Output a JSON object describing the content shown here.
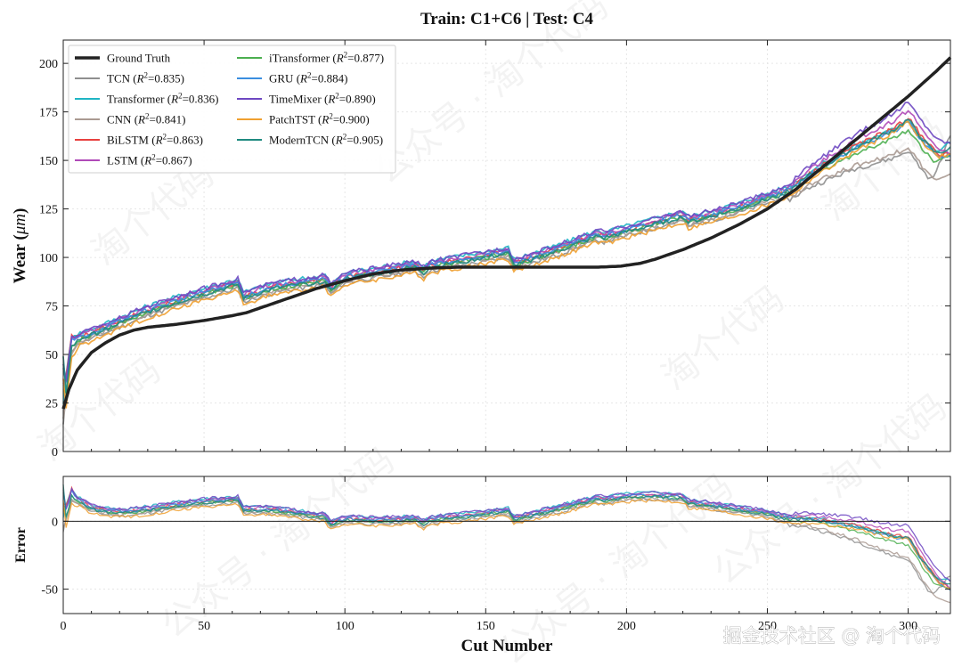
{
  "chart_data": [
    {
      "type": "line",
      "title": "Train: C1+C6  |  Test: C4",
      "xlabel": "",
      "ylabel": "Wear (μm)",
      "ylabel_main": "Wear (",
      "ylabel_unit": "μm",
      "ylabel_end": ")",
      "xlim": [
        0,
        315
      ],
      "ylim": [
        0,
        212
      ],
      "x_ticks": [
        0,
        50,
        100,
        150,
        200,
        250,
        300
      ],
      "y_ticks": [
        0,
        25,
        50,
        75,
        100,
        125,
        150,
        175,
        200
      ],
      "y_tick_labels": [
        "0",
        "25",
        "50",
        "75",
        "100",
        "125",
        "150",
        "175",
        "200"
      ],
      "grid": true,
      "legend_position": "top-left",
      "ground_truth": {
        "name": "Ground Truth",
        "x": [
          0,
          2,
          5,
          10,
          15,
          20,
          25,
          30,
          40,
          50,
          60,
          65,
          70,
          80,
          90,
          100,
          110,
          120,
          130,
          140,
          150,
          160,
          170,
          180,
          190,
          198,
          205,
          210,
          220,
          230,
          240,
          250,
          260,
          270,
          280,
          290,
          300,
          310,
          315
        ],
        "values": [
          22,
          32,
          42,
          51,
          56,
          60,
          62.5,
          64,
          65.5,
          67.5,
          70,
          71.5,
          74,
          79,
          84,
          88,
          91.5,
          93.5,
          94.5,
          95,
          95,
          95,
          95,
          95,
          95,
          95.5,
          97,
          99,
          104,
          110,
          117,
          125,
          135,
          147,
          159,
          171,
          183,
          196,
          203
        ]
      },
      "series": [
        {
          "name": "TCN",
          "r2": "0.835",
          "color": "#8f8f8f"
        },
        {
          "name": "Transformer",
          "r2": "0.836",
          "color": "#1fb5c4"
        },
        {
          "name": "CNN",
          "r2": "0.841",
          "color": "#aa9a92"
        },
        {
          "name": "BiLSTM",
          "r2": "0.863",
          "color": "#e8413f"
        },
        {
          "name": "LSTM",
          "r2": "0.867",
          "color": "#b04ab8"
        },
        {
          "name": "iTransformer",
          "r2": "0.877",
          "color": "#4caf50"
        },
        {
          "name": "GRU",
          "r2": "0.884",
          "color": "#3a8ee0"
        },
        {
          "name": "TimeMixer",
          "r2": "0.890",
          "color": "#6e48c2"
        },
        {
          "name": "PatchTST",
          "r2": "0.900",
          "color": "#f0a030"
        },
        {
          "name": "ModernTCN",
          "r2": "0.905",
          "color": "#1f8a80"
        }
      ],
      "ground_truth_color": "#222222"
    },
    {
      "type": "line",
      "title": "",
      "xlabel": "Cut Number",
      "ylabel": "Error",
      "xlim": [
        0,
        315
      ],
      "ylim": [
        -68,
        33
      ],
      "x_ticks": [
        0,
        50,
        100,
        150,
        200,
        250,
        300
      ],
      "x_tick_labels": [
        "0",
        "50",
        "100",
        "150",
        "200",
        "250",
        "300"
      ],
      "y_ticks": [
        -50,
        0
      ],
      "y_tick_labels": [
        "-50",
        "0"
      ],
      "zero_line": true
    }
  ],
  "legend": {
    "r2_prefix": "(",
    "r2_symbol": "R",
    "r2_exp": "2",
    "r2_eq": "=",
    "r2_suffix": ")"
  },
  "watermark": {
    "text": "淘个代码",
    "text2": "公众号 · 淘个代码",
    "footer": "掘金技术社区 @ 淘个代码"
  }
}
